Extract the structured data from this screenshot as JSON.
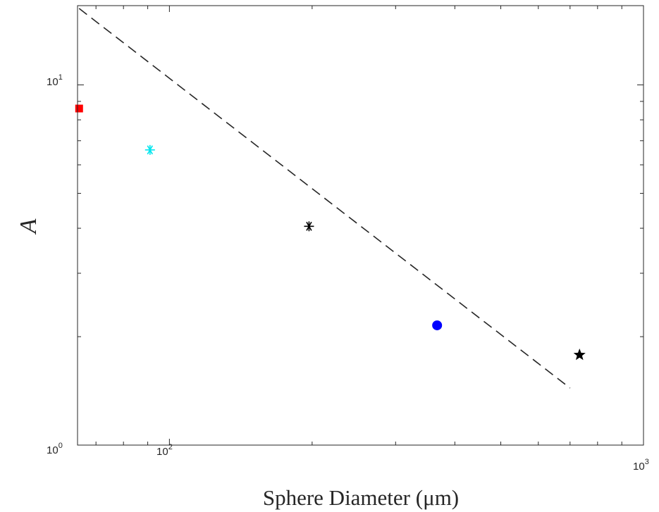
{
  "chart_data": {
    "type": "scatter",
    "xlabel": "Sphere Diameter (μm)",
    "ylabel": "A",
    "xscale": "log",
    "yscale": "log",
    "xlim": [
      64,
      1000
    ],
    "ylim": [
      1,
      16.6
    ],
    "grid": false,
    "x_ticks": [
      {
        "value": 100,
        "base": "10",
        "exp": "2"
      },
      {
        "value": 1000,
        "base": "10",
        "exp": "3"
      }
    ],
    "y_ticks": [
      {
        "value": 1,
        "base": "10",
        "exp": "0"
      },
      {
        "value": 10,
        "base": "10",
        "exp": "1"
      }
    ],
    "points": [
      {
        "x": 64.5,
        "y": 8.6,
        "marker": "square",
        "color": "#ff0000"
      },
      {
        "x": 91,
        "y": 6.6,
        "marker": "asterisk",
        "color": "#00e5ee"
      },
      {
        "x": 197,
        "y": 4.05,
        "marker": "asterisk",
        "color": "#000000"
      },
      {
        "x": 367,
        "y": 2.15,
        "marker": "circle",
        "color": "#0000ff"
      },
      {
        "x": 733,
        "y": 1.78,
        "marker": "star",
        "color": "#000000"
      }
    ],
    "fit_line": {
      "style": "dashed",
      "color": "#262626",
      "x": [
        64.5,
        700
      ],
      "y": [
        16.3,
        1.44
      ]
    }
  }
}
